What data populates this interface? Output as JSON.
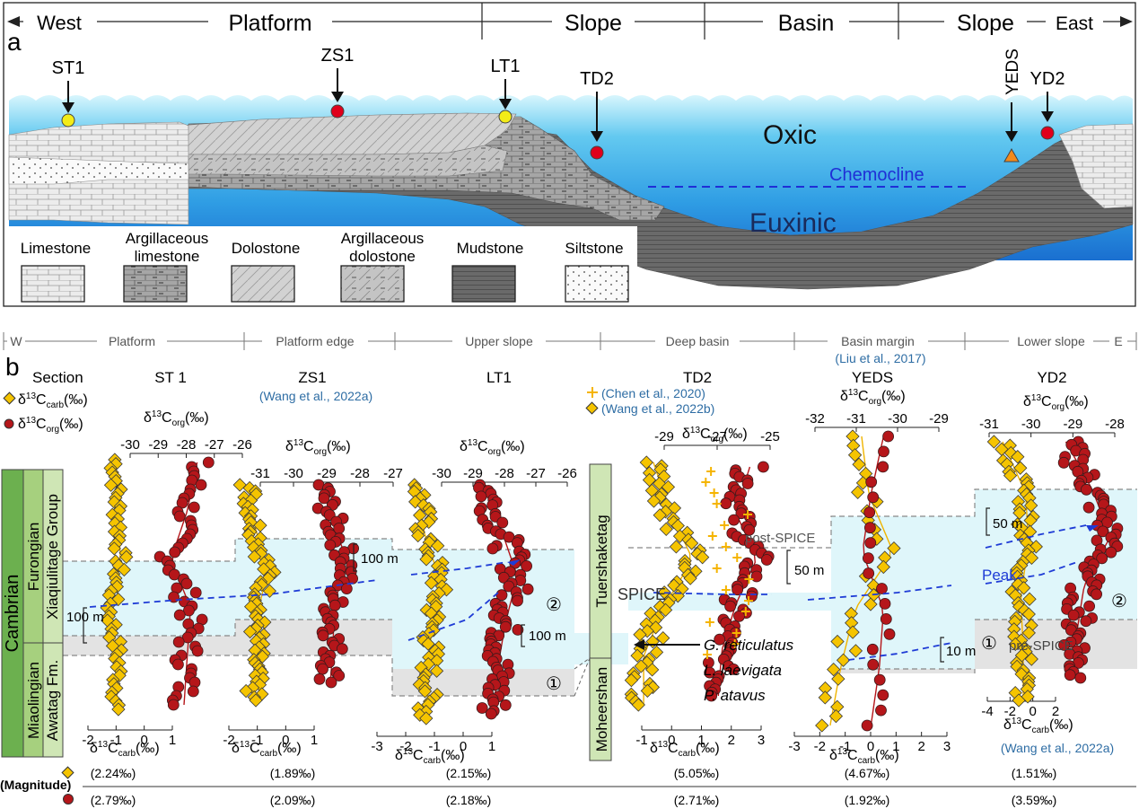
{
  "panel_a": {
    "label": "a",
    "header": {
      "west": "West",
      "platform": "Platform",
      "slope1": "Slope",
      "basin": "Basin",
      "slope2": "Slope",
      "east": "East"
    },
    "sites": [
      {
        "name": "ST1",
        "marker": "yellow-circle"
      },
      {
        "name": "ZS1",
        "marker": "red-circle"
      },
      {
        "name": "LT1",
        "marker": "yellow-circle"
      },
      {
        "name": "TD2",
        "marker": "red-circle"
      },
      {
        "name": "YEDS",
        "marker": "orange-triangle"
      },
      {
        "name": "YD2",
        "marker": "red-circle"
      }
    ],
    "water_labels": {
      "oxic": "Oxic",
      "chemocline": "Chemocline",
      "euxinic": "Euxinic"
    },
    "legend": [
      "Limestone",
      "Argillaceous limestone",
      "Dolostone",
      "Argillaceous dolostone",
      "Mudstone",
      "Siltstone"
    ],
    "colors": {
      "water_top": "#bfeefc",
      "water_mid": "#3fb7ec",
      "water_deep": "#1e78d2",
      "euxinic_label": "#1a3a7a",
      "chemocline": "#1f2fd6",
      "yellow": "#f3ec17",
      "red": "#e0001b",
      "orange": "#f28a1c"
    }
  },
  "panel_b": {
    "label": "b",
    "zones": [
      "W",
      "Platform",
      "Platform edge",
      "Upper slope",
      "Deep basin",
      "Basin margin",
      "Lower slope",
      "E"
    ],
    "section_title": "Section",
    "legend_carb": "δ13Ccarb(‰)",
    "legend_org": "δ13Corg(‰)",
    "stratigraphy": {
      "system": "Cambrian",
      "series_upper": "Furongian",
      "series_lower": "Miaolingian",
      "group_upper": "Xiaqiulitage Group",
      "group_lower": "Awatag Fm."
    },
    "td2_strat": {
      "upper": "Tuershaketag",
      "lower": "Moheershan"
    },
    "sections": [
      {
        "name": "ST 1",
        "org_ticks": [
          "-30",
          "-29",
          "-28",
          "-27",
          "-26"
        ],
        "carb_ticks": [
          "-2",
          "-1",
          "0",
          "1"
        ],
        "scale": "100 m",
        "mag_carb": "(2.24‰)",
        "mag_org": "(2.79‰)"
      },
      {
        "name": "ZS1",
        "source": "(Wang et al., 2022a)",
        "org_ticks": [
          "-31",
          "-30",
          "-29",
          "-28",
          "-27"
        ],
        "carb_ticks": [
          "-2",
          "-1",
          "0",
          "1"
        ],
        "scale": "100 m",
        "mag_carb": "(1.89‰)",
        "mag_org": "(2.09‰)"
      },
      {
        "name": "LT1",
        "org_ticks": [
          "-30",
          "-29",
          "-28",
          "-27",
          "-26"
        ],
        "carb_ticks": [
          "-3",
          "-2",
          "-1",
          "0",
          "1"
        ],
        "scale": "100 m",
        "mag_carb": "(2.15‰)",
        "mag_org": "(2.18‰)"
      },
      {
        "name": "TD2",
        "sources": [
          "(Chen et al., 2020)",
          "(Wang et al., 2022b)"
        ],
        "org_ticks": [
          "-29",
          "-27",
          "-25"
        ],
        "carb_ticks": [
          "-1",
          "0",
          "1",
          "2",
          "3"
        ],
        "scale": "50 m",
        "mag_carb": "(5.05‰)",
        "mag_org": "(2.71‰)"
      },
      {
        "name": "YEDS",
        "source": "(Liu et al., 2017)",
        "org_ticks": [
          "-32",
          "-31",
          "-30",
          "-29"
        ],
        "carb_ticks": [
          "-3",
          "-2",
          "-1",
          "0",
          "1",
          "2",
          "3"
        ],
        "scale": "10 m",
        "mag_carb": "(4.67‰)",
        "mag_org": "(1.92‰)"
      },
      {
        "name": "YD2",
        "source": "(Wang et al., 2022a)",
        "org_ticks": [
          "-31",
          "-30",
          "-29",
          "-28"
        ],
        "carb_ticks": [
          "-4",
          "-2",
          "0",
          "2"
        ],
        "scale": "50 m",
        "mag_carb": "(1.51‰)",
        "mag_org": "(3.59‰)"
      }
    ],
    "annotations": {
      "post_spice": "post-SPICE",
      "spice": "SPICE",
      "pre_spice": "pre-SPICE",
      "peak": "Peak",
      "fossil1": "G. reticulatus",
      "fossil2": "L. laevigata",
      "fossil3": "P. atavus",
      "circle1": "①",
      "circle2": "②"
    },
    "magnitude_label": "(Magnitude)",
    "colors": {
      "carb": "#f5c400",
      "org": "#b5161a",
      "spice_band": "#dff6fa",
      "pre_band": "#e3e3e3",
      "dash_blue": "#1f3cd6",
      "source_blue": "#2e6da4"
    }
  }
}
